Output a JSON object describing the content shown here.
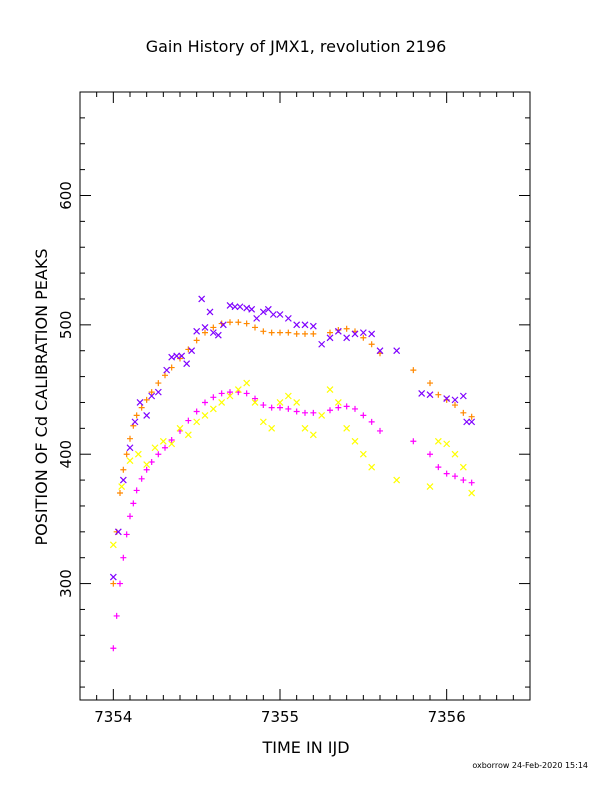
{
  "chart_data": {
    "type": "scatter",
    "title": "Gain History of JMX1, revolution 2196",
    "xlabel": "TIME IN IJD",
    "ylabel": "POSITION OF Cd CALIBRATION PEAKS",
    "xlim": [
      7353.8,
      7356.5
    ],
    "ylim": [
      210,
      680
    ],
    "xticks": [
      7354,
      7355,
      7356
    ],
    "xtick_labels": [
      "7354",
      "7355",
      "7356"
    ],
    "yticks": [
      300,
      400,
      500,
      600
    ],
    "ytick_labels": [
      "300",
      "400",
      "500",
      "600"
    ],
    "grid": false,
    "legend": "none",
    "series": [
      {
        "color": "#ff8800",
        "marker": "plus",
        "points": [
          [
            7354.0,
            300
          ],
          [
            7354.02,
            340
          ],
          [
            7354.04,
            370
          ],
          [
            7354.06,
            388
          ],
          [
            7354.08,
            400
          ],
          [
            7354.1,
            412
          ],
          [
            7354.12,
            422
          ],
          [
            7354.14,
            430
          ],
          [
            7354.17,
            436
          ],
          [
            7354.2,
            442
          ],
          [
            7354.23,
            448
          ],
          [
            7354.27,
            455
          ],
          [
            7354.31,
            461
          ],
          [
            7354.35,
            467
          ],
          [
            7354.4,
            474
          ],
          [
            7354.45,
            481
          ],
          [
            7354.5,
            488
          ],
          [
            7354.55,
            494
          ],
          [
            7354.6,
            498
          ],
          [
            7354.65,
            501
          ],
          [
            7354.7,
            502
          ],
          [
            7354.75,
            502
          ],
          [
            7354.8,
            501
          ],
          [
            7354.85,
            498
          ],
          [
            7354.9,
            495
          ],
          [
            7354.95,
            494
          ],
          [
            7355.0,
            494
          ],
          [
            7355.05,
            494
          ],
          [
            7355.1,
            493
          ],
          [
            7355.15,
            493
          ],
          [
            7355.2,
            493
          ],
          [
            7355.3,
            494
          ],
          [
            7355.35,
            496
          ],
          [
            7355.4,
            497
          ],
          [
            7355.45,
            495
          ],
          [
            7355.5,
            490
          ],
          [
            7355.55,
            485
          ],
          [
            7355.6,
            478
          ],
          [
            7355.8,
            465
          ],
          [
            7355.9,
            455
          ],
          [
            7355.95,
            446
          ],
          [
            7356.0,
            442
          ],
          [
            7356.05,
            438
          ],
          [
            7356.1,
            432
          ],
          [
            7356.15,
            429
          ]
        ]
      },
      {
        "color": "#ff00ff",
        "marker": "plus",
        "points": [
          [
            7354.0,
            250
          ],
          [
            7354.02,
            275
          ],
          [
            7354.04,
            300
          ],
          [
            7354.06,
            320
          ],
          [
            7354.08,
            338
          ],
          [
            7354.1,
            352
          ],
          [
            7354.12,
            362
          ],
          [
            7354.14,
            372
          ],
          [
            7354.17,
            381
          ],
          [
            7354.2,
            388
          ],
          [
            7354.23,
            394
          ],
          [
            7354.27,
            400
          ],
          [
            7354.31,
            405
          ],
          [
            7354.35,
            411
          ],
          [
            7354.4,
            418
          ],
          [
            7354.45,
            426
          ],
          [
            7354.5,
            433
          ],
          [
            7354.55,
            440
          ],
          [
            7354.6,
            444
          ],
          [
            7354.65,
            447
          ],
          [
            7354.7,
            448
          ],
          [
            7354.75,
            448
          ],
          [
            7354.8,
            447
          ],
          [
            7354.85,
            443
          ],
          [
            7354.9,
            438
          ],
          [
            7354.95,
            436
          ],
          [
            7355.0,
            436
          ],
          [
            7355.05,
            435
          ],
          [
            7355.1,
            433
          ],
          [
            7355.15,
            432
          ],
          [
            7355.2,
            432
          ],
          [
            7355.3,
            434
          ],
          [
            7355.35,
            436
          ],
          [
            7355.4,
            437
          ],
          [
            7355.45,
            435
          ],
          [
            7355.5,
            430
          ],
          [
            7355.55,
            425
          ],
          [
            7355.6,
            418
          ],
          [
            7355.8,
            410
          ],
          [
            7355.9,
            400
          ],
          [
            7355.95,
            390
          ],
          [
            7356.0,
            385
          ],
          [
            7356.05,
            383
          ],
          [
            7356.1,
            380
          ],
          [
            7356.15,
            378
          ]
        ]
      },
      {
        "color": "#7f00ff",
        "marker": "cross",
        "points": [
          [
            7354.0,
            305
          ],
          [
            7354.03,
            340
          ],
          [
            7354.06,
            380
          ],
          [
            7354.1,
            405
          ],
          [
            7354.13,
            425
          ],
          [
            7354.16,
            440
          ],
          [
            7354.2,
            430
          ],
          [
            7354.23,
            445
          ],
          [
            7354.27,
            448
          ],
          [
            7354.32,
            465
          ],
          [
            7354.35,
            475
          ],
          [
            7354.38,
            476
          ],
          [
            7354.41,
            476
          ],
          [
            7354.44,
            470
          ],
          [
            7354.47,
            480
          ],
          [
            7354.5,
            495
          ],
          [
            7354.53,
            520
          ],
          [
            7354.55,
            498
          ],
          [
            7354.58,
            510
          ],
          [
            7354.6,
            494
          ],
          [
            7354.63,
            492
          ],
          [
            7354.66,
            500
          ],
          [
            7354.7,
            515
          ],
          [
            7354.73,
            514
          ],
          [
            7354.76,
            514
          ],
          [
            7354.8,
            513
          ],
          [
            7354.83,
            512
          ],
          [
            7354.86,
            505
          ],
          [
            7354.9,
            510
          ],
          [
            7354.93,
            512
          ],
          [
            7354.96,
            508
          ],
          [
            7355.0,
            508
          ],
          [
            7355.05,
            505
          ],
          [
            7355.1,
            500
          ],
          [
            7355.15,
            500
          ],
          [
            7355.2,
            499
          ],
          [
            7355.25,
            485
          ],
          [
            7355.3,
            490
          ],
          [
            7355.35,
            495
          ],
          [
            7355.4,
            490
          ],
          [
            7355.45,
            493
          ],
          [
            7355.5,
            494
          ],
          [
            7355.55,
            493
          ],
          [
            7355.6,
            480
          ],
          [
            7355.7,
            480
          ],
          [
            7355.85,
            447
          ],
          [
            7355.9,
            446
          ],
          [
            7356.0,
            443
          ],
          [
            7356.05,
            442
          ],
          [
            7356.1,
            445
          ],
          [
            7356.12,
            425
          ],
          [
            7356.15,
            425
          ]
        ]
      },
      {
        "color": "#ffff00",
        "marker": "cross",
        "points": [
          [
            7354.0,
            330
          ],
          [
            7354.05,
            375
          ],
          [
            7354.1,
            395
          ],
          [
            7354.15,
            400
          ],
          [
            7354.2,
            392
          ],
          [
            7354.25,
            405
          ],
          [
            7354.3,
            410
          ],
          [
            7354.35,
            408
          ],
          [
            7354.4,
            420
          ],
          [
            7354.45,
            415
          ],
          [
            7354.5,
            425
          ],
          [
            7354.55,
            430
          ],
          [
            7354.6,
            435
          ],
          [
            7354.65,
            440
          ],
          [
            7354.7,
            445
          ],
          [
            7354.75,
            450
          ],
          [
            7354.8,
            455
          ],
          [
            7354.85,
            440
          ],
          [
            7354.9,
            425
          ],
          [
            7354.95,
            420
          ],
          [
            7355.0,
            440
          ],
          [
            7355.05,
            445
          ],
          [
            7355.1,
            440
          ],
          [
            7355.15,
            420
          ],
          [
            7355.2,
            415
          ],
          [
            7355.25,
            430
          ],
          [
            7355.3,
            450
          ],
          [
            7355.35,
            440
          ],
          [
            7355.4,
            420
          ],
          [
            7355.45,
            410
          ],
          [
            7355.5,
            400
          ],
          [
            7355.55,
            390
          ],
          [
            7355.7,
            380
          ],
          [
            7355.9,
            375
          ],
          [
            7355.95,
            410
          ],
          [
            7356.0,
            408
          ],
          [
            7356.05,
            400
          ],
          [
            7356.1,
            390
          ],
          [
            7356.15,
            370
          ]
        ]
      }
    ]
  },
  "footer": "oxborrow 24-Feb-2020 15:14"
}
